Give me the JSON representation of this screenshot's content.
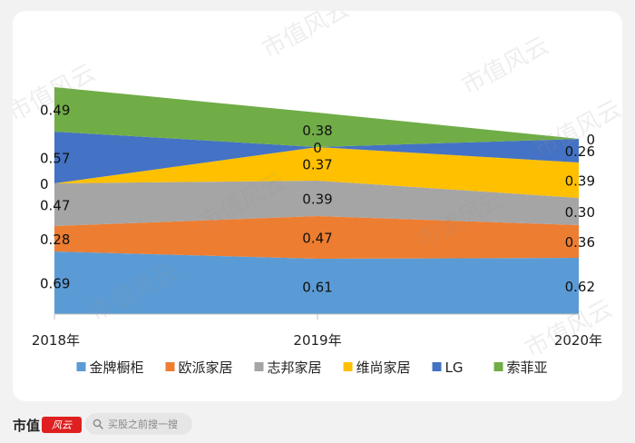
{
  "chart_data": {
    "type": "area",
    "stacked": true,
    "categories": [
      "2018年",
      "2019年",
      "2020年"
    ],
    "series": [
      {
        "name": "金牌橱柜",
        "color": "#5b9bd5",
        "values": [
          0.69,
          0.61,
          0.62
        ],
        "labels": [
          "0.69",
          "0.61",
          "0.62"
        ]
      },
      {
        "name": "欧派家居",
        "color": "#ed7d31",
        "values": [
          0.28,
          0.47,
          0.36
        ],
        "labels": [
          "0.28",
          "0.47",
          "0.36"
        ]
      },
      {
        "name": "志邦家居",
        "color": "#a5a5a5",
        "values": [
          0.47,
          0.39,
          0.3
        ],
        "labels": [
          "0.47",
          "0.39",
          "0.30"
        ]
      },
      {
        "name": "维尚家居",
        "color": "#ffc000",
        "values": [
          0,
          0.37,
          0.39
        ],
        "labels": [
          "0",
          "0.37",
          "0.39"
        ]
      },
      {
        "name": "LG",
        "color": "#4472c4",
        "values": [
          0.57,
          0,
          0.26
        ],
        "labels": [
          "0.57",
          "0",
          "0.26"
        ]
      },
      {
        "name": "索菲亚",
        "color": "#70ad47",
        "values": [
          0.49,
          0.38,
          0
        ],
        "labels": [
          "0.49",
          "0.38",
          "0"
        ]
      }
    ],
    "ylim": [
      0,
      2.6
    ],
    "legend": "bottom"
  },
  "watermark_text": "市值风云",
  "footer": {
    "brand": "市值",
    "brand_logo": "风云",
    "search_placeholder": "买股之前搜一搜",
    "search_icon": "search-icon"
  }
}
